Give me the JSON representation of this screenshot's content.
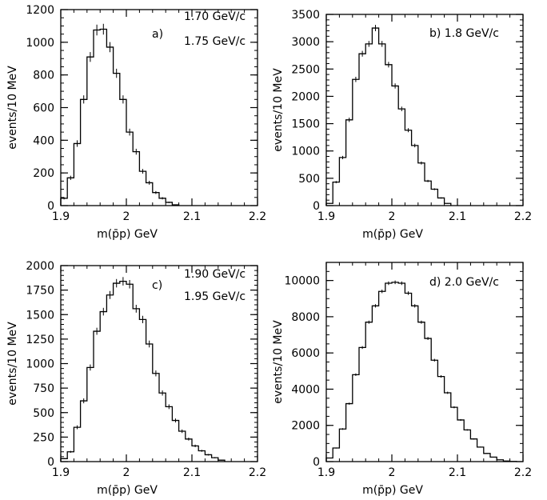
{
  "chart_data": [
    {
      "type": "bar",
      "panel": "a",
      "annotations": [
        "a)",
        "1.70 GeV/c",
        "1.75 GeV/c"
      ],
      "xlabel": "m(p̄p) GeV",
      "ylabel": "events/10 MeV",
      "xlim": [
        1.9,
        2.2
      ],
      "ylim": [
        0,
        1200
      ],
      "xticks": [
        "1.9",
        "2",
        "2.1",
        "2.2"
      ],
      "yticks": [
        "0",
        "200",
        "400",
        "600",
        "800",
        "1000",
        "1200"
      ],
      "bin_edges": [
        1.9,
        1.91,
        1.92,
        1.93,
        1.94,
        1.95,
        1.96,
        1.97,
        1.98,
        1.99,
        2.0,
        2.01,
        2.02,
        2.03,
        2.04,
        2.05,
        2.06,
        2.07,
        2.08
      ],
      "values": [
        45,
        170,
        380,
        650,
        910,
        1075,
        1080,
        970,
        810,
        650,
        450,
        330,
        210,
        140,
        80,
        45,
        20,
        5
      ],
      "errors": [
        7,
        13,
        20,
        25,
        30,
        33,
        33,
        31,
        28,
        25,
        21,
        18,
        14,
        12,
        9,
        7,
        4,
        2
      ]
    },
    {
      "type": "bar",
      "panel": "b",
      "annotations": [
        "b) 1.8 GeV/c"
      ],
      "xlabel": "m(p̄p) GeV",
      "ylabel": "events/10 MeV",
      "xlim": [
        1.9,
        2.2
      ],
      "ylim": [
        0,
        3500
      ],
      "xticks": [
        "1.9",
        "2",
        "2.1",
        "2.2"
      ],
      "yticks": [
        "0",
        "500",
        "1000",
        "1500",
        "2000",
        "2500",
        "3000",
        "3500"
      ],
      "bin_edges": [
        1.9,
        1.91,
        1.92,
        1.93,
        1.94,
        1.95,
        1.96,
        1.97,
        1.98,
        1.99,
        2.0,
        2.01,
        2.02,
        2.03,
        2.04,
        2.05,
        2.06,
        2.07,
        2.08,
        2.09
      ],
      "values": [
        40,
        430,
        880,
        1570,
        2310,
        2780,
        2960,
        3250,
        2960,
        2580,
        2190,
        1770,
        1380,
        1100,
        780,
        450,
        300,
        140,
        40
      ],
      "errors": [
        6,
        21,
        30,
        40,
        48,
        53,
        54,
        57,
        54,
        51,
        47,
        42,
        37,
        33,
        28,
        21,
        17,
        12,
        6
      ]
    },
    {
      "type": "bar",
      "panel": "c",
      "annotations": [
        "c)",
        "1.90 GeV/c",
        "1.95 GeV/c"
      ],
      "xlabel": "m(p̄p) GeV",
      "ylabel": "events/10 MeV",
      "xlim": [
        1.9,
        2.2
      ],
      "ylim": [
        0,
        2000
      ],
      "xticks": [
        "1.9",
        "2",
        "2.1",
        "2.2"
      ],
      "yticks": [
        "0",
        "250",
        "500",
        "750",
        "1000",
        "1250",
        "1500",
        "1750",
        "2000"
      ],
      "bin_edges": [
        1.9,
        1.91,
        1.92,
        1.93,
        1.94,
        1.95,
        1.96,
        1.97,
        1.98,
        1.99,
        2.0,
        2.01,
        2.02,
        2.03,
        2.04,
        2.05,
        2.06,
        2.07,
        2.08,
        2.09,
        2.1,
        2.11,
        2.12,
        2.13,
        2.14,
        2.15
      ],
      "values": [
        30,
        100,
        350,
        620,
        960,
        1330,
        1530,
        1700,
        1820,
        1840,
        1810,
        1560,
        1450,
        1200,
        900,
        700,
        560,
        420,
        310,
        230,
        160,
        110,
        70,
        40,
        15
      ],
      "errors": [
        5,
        10,
        19,
        25,
        31,
        36,
        39,
        41,
        43,
        43,
        43,
        40,
        38,
        35,
        30,
        26,
        24,
        20,
        18,
        15,
        13,
        10,
        8,
        6,
        4
      ]
    },
    {
      "type": "bar",
      "panel": "d",
      "annotations": [
        "d) 2.0 GeV/c"
      ],
      "xlabel": "m(p̄p) GeV",
      "ylabel": "events/10 MeV",
      "xlim": [
        1.9,
        2.2
      ],
      "ylim": [
        0,
        11000
      ],
      "xticks": [
        "1.9",
        "2",
        "2.1",
        "2.2"
      ],
      "yticks": [
        "0",
        "2000",
        "4000",
        "6000",
        "8000",
        "10000"
      ],
      "bin_edges": [
        1.9,
        1.91,
        1.92,
        1.93,
        1.94,
        1.95,
        1.96,
        1.97,
        1.98,
        1.99,
        2.0,
        2.01,
        2.02,
        2.03,
        2.04,
        2.05,
        2.06,
        2.07,
        2.08,
        2.09,
        2.1,
        2.11,
        2.12,
        2.13,
        2.14,
        2.15,
        2.16,
        2.17,
        2.18,
        2.19
      ],
      "values": [
        200,
        750,
        1800,
        3200,
        4800,
        6300,
        7700,
        8600,
        9400,
        9850,
        9900,
        9850,
        9300,
        8600,
        7700,
        6800,
        5600,
        4700,
        3800,
        3000,
        2300,
        1750,
        1250,
        800,
        450,
        250,
        100,
        30,
        10
      ],
      "errors": [
        14,
        27,
        42,
        57,
        69,
        79,
        88,
        93,
        97,
        99,
        100,
        99,
        96,
        93,
        88,
        82,
        75,
        69,
        62,
        55,
        48,
        42,
        35,
        28,
        21,
        16,
        10,
        5,
        3
      ]
    }
  ]
}
